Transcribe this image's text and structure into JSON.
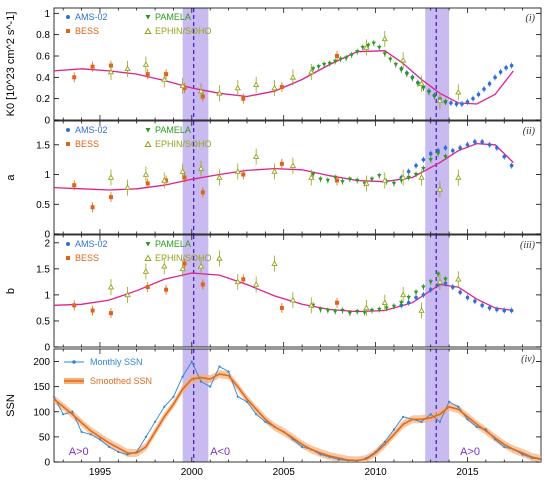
{
  "chart_data": [
    {
      "type": "scatter",
      "panel_label": "(i)",
      "ylabel": "K0 [10^23 cm^2 s^-1]",
      "xlim": [
        1992.5,
        2019
      ],
      "ylim": [
        0,
        1.05
      ],
      "yticks": [
        0,
        0.2,
        0.4,
        0.6,
        0.8,
        1
      ],
      "legend": [
        "AMS-02",
        "PAMELA",
        "BESS",
        "EPHIN/SOHO"
      ],
      "series": [
        {
          "name": "AMS-02",
          "color": "#2f6fd6",
          "marker": "circle",
          "x": [
            2011.4,
            2011.7,
            2012.0,
            2012.3,
            2012.6,
            2012.9,
            2013.2,
            2013.5,
            2013.8,
            2014.1,
            2014.4,
            2014.7,
            2015.0,
            2015.3,
            2015.6,
            2015.9,
            2016.2,
            2016.5,
            2016.8,
            2017.1,
            2017.4
          ],
          "y": [
            0.48,
            0.44,
            0.4,
            0.35,
            0.31,
            0.27,
            0.23,
            0.2,
            0.17,
            0.16,
            0.15,
            0.15,
            0.17,
            0.2,
            0.24,
            0.29,
            0.34,
            0.4,
            0.45,
            0.49,
            0.51
          ]
        },
        {
          "name": "PAMELA",
          "color": "#2a9a1e",
          "marker": "tri-down",
          "x": [
            2006.6,
            2006.9,
            2007.2,
            2007.5,
            2007.8,
            2008.1,
            2008.4,
            2008.7,
            2009.0,
            2009.3,
            2009.6,
            2009.9,
            2010.2,
            2010.5,
            2010.8,
            2011.1,
            2011.4,
            2011.7,
            2012.0,
            2012.3,
            2012.6,
            2012.9,
            2013.2,
            2013.5,
            2013.8
          ],
          "y": [
            0.48,
            0.5,
            0.52,
            0.53,
            0.55,
            0.57,
            0.58,
            0.61,
            0.64,
            0.68,
            0.7,
            0.72,
            0.68,
            0.62,
            0.57,
            0.52,
            0.47,
            0.43,
            0.39,
            0.34,
            0.3,
            0.26,
            0.22,
            0.19,
            0.17
          ]
        },
        {
          "name": "BESS",
          "color": "#e0631a",
          "marker": "square",
          "x": [
            1993.6,
            1994.6,
            1995.6,
            1997.6,
            1998.6,
            1999.6,
            2000.6,
            2002.8,
            2004.9,
            2007.9
          ],
          "y": [
            0.4,
            0.5,
            0.51,
            0.43,
            0.43,
            0.3,
            0.22,
            0.2,
            0.31,
            0.6
          ]
        },
        {
          "name": "EPHIN/SOHO",
          "color": "#97a21c",
          "marker": "tri-up",
          "x": [
            1995.6,
            1996.5,
            1997.5,
            1998.5,
            1999.5,
            2000.5,
            2001.5,
            2002.5,
            2003.5,
            2004.5,
            2005.5,
            2006.5,
            2009.5,
            2010.5,
            2011.5,
            2012.5,
            2013.5,
            2014.5
          ],
          "y": [
            0.45,
            0.48,
            0.52,
            0.38,
            0.32,
            0.27,
            0.25,
            0.3,
            0.33,
            0.3,
            0.4,
            0.45,
            0.68,
            0.76,
            0.56,
            0.34,
            0.18,
            0.26
          ]
        }
      ],
      "fit": {
        "color": "#e0208f",
        "x": [
          1992.5,
          1994,
          1995.5,
          1997,
          1998.5,
          2000,
          2001.5,
          2003,
          2004.5,
          2006,
          2007.5,
          2009,
          2010.5,
          2011.5,
          2012.5,
          2013.5,
          2014.5,
          2015.5,
          2016.5,
          2017.5
        ],
        "y": [
          0.46,
          0.48,
          0.46,
          0.43,
          0.37,
          0.3,
          0.25,
          0.22,
          0.27,
          0.38,
          0.52,
          0.64,
          0.65,
          0.53,
          0.38,
          0.25,
          0.16,
          0.15,
          0.24,
          0.46
        ]
      }
    },
    {
      "type": "scatter",
      "panel_label": "(ii)",
      "ylabel": "a",
      "xlim": [
        1992.5,
        2019
      ],
      "ylim": [
        0,
        1.9
      ],
      "yticks": [
        0,
        0.5,
        1,
        1.5
      ],
      "legend": [
        "AMS-02",
        "PAMELA",
        "BESS",
        "EPHIN/SOHO"
      ],
      "series": [
        {
          "name": "AMS-02",
          "color": "#2f6fd6",
          "marker": "circle",
          "x": [
            2011.4,
            2011.8,
            2012.2,
            2012.6,
            2013.0,
            2013.4,
            2013.8,
            2014.2,
            2014.6,
            2015.0,
            2015.4,
            2015.8,
            2016.2,
            2016.6,
            2017.0,
            2017.4
          ],
          "y": [
            0.95,
            1.05,
            1.15,
            1.25,
            1.35,
            1.4,
            1.45,
            1.4,
            1.45,
            1.5,
            1.55,
            1.55,
            1.5,
            1.45,
            1.3,
            1.15
          ]
        },
        {
          "name": "PAMELA",
          "color": "#2a9a1e",
          "marker": "tri-down",
          "x": [
            2006.6,
            2007.0,
            2007.4,
            2007.8,
            2008.2,
            2008.6,
            2009.0,
            2009.4,
            2009.8,
            2010.2,
            2010.6,
            2011.0,
            2011.4,
            2011.8,
            2012.2,
            2012.6,
            2013.0,
            2013.4,
            2013.8
          ],
          "y": [
            1.0,
            0.92,
            0.9,
            0.95,
            0.88,
            0.92,
            0.9,
            0.85,
            0.92,
            0.98,
            0.88,
            0.85,
            0.9,
            0.95,
            1.0,
            1.1,
            1.25,
            1.35,
            1.3
          ]
        },
        {
          "name": "BESS",
          "color": "#e0631a",
          "marker": "square",
          "x": [
            1993.6,
            1994.6,
            1995.6,
            1997.6,
            1998.6,
            1999.6,
            2000.6,
            2002.8,
            2004.9,
            2007.9
          ],
          "y": [
            0.82,
            0.45,
            0.62,
            0.85,
            0.9,
            0.95,
            0.7,
            1.0,
            1.18,
            0.9
          ]
        },
        {
          "name": "EPHIN/SOHO",
          "color": "#97a21c",
          "marker": "tri-up",
          "x": [
            1995.6,
            1996.5,
            1997.5,
            1998.5,
            1999.5,
            2000.5,
            2001.5,
            2002.5,
            2003.5,
            2004.5,
            2005.5,
            2006.5,
            2009.5,
            2010.5,
            2011.5,
            2012.5,
            2013.5,
            2014.5
          ],
          "y": [
            0.95,
            0.78,
            1.0,
            0.9,
            1.05,
            1.1,
            0.95,
            1.05,
            1.3,
            1.05,
            1.15,
            0.95,
            0.85,
            0.9,
            0.95,
            0.95,
            0.75,
            0.95
          ]
        }
      ],
      "fit": {
        "color": "#e0208f",
        "x": [
          1992.5,
          1994,
          1995.5,
          1997,
          1998.5,
          2000,
          2001.5,
          2003,
          2004.5,
          2006,
          2007.5,
          2009,
          2010.5,
          2012,
          2013.5,
          2014.5,
          2015.5,
          2016.5,
          2017.5
        ],
        "y": [
          0.78,
          0.76,
          0.74,
          0.76,
          0.82,
          0.92,
          1.0,
          1.07,
          1.1,
          1.08,
          0.98,
          0.9,
          0.88,
          0.95,
          1.2,
          1.4,
          1.52,
          1.5,
          1.2
        ]
      }
    },
    {
      "type": "scatter",
      "panel_label": "(iii)",
      "ylabel": "b",
      "xlim": [
        1992.5,
        2019
      ],
      "ylim": [
        0,
        2.15
      ],
      "yticks": [
        0,
        0.5,
        1,
        1.5,
        2
      ],
      "legend": [
        "AMS-02",
        "PAMELA",
        "BESS",
        "EPHIN/SOHO"
      ],
      "series": [
        {
          "name": "AMS-02",
          "color": "#2f6fd6",
          "marker": "circle",
          "x": [
            2011.4,
            2011.8,
            2012.2,
            2012.6,
            2013.0,
            2013.4,
            2013.8,
            2014.2,
            2014.6,
            2015.0,
            2015.4,
            2015.8,
            2016.2,
            2016.6,
            2017.0,
            2017.4
          ],
          "y": [
            0.8,
            0.85,
            0.95,
            1.0,
            1.1,
            1.2,
            1.22,
            1.15,
            1.05,
            0.95,
            0.88,
            0.8,
            0.75,
            0.72,
            0.7,
            0.7
          ]
        },
        {
          "name": "PAMELA",
          "color": "#2a9a1e",
          "marker": "tri-down",
          "x": [
            2006.6,
            2007.0,
            2007.4,
            2007.8,
            2008.2,
            2008.6,
            2009.0,
            2009.4,
            2009.8,
            2010.2,
            2010.6,
            2011.0,
            2011.4,
            2011.8,
            2012.2,
            2012.6,
            2013.0,
            2013.4,
            2013.8
          ],
          "y": [
            0.8,
            0.72,
            0.7,
            0.68,
            0.7,
            0.65,
            0.68,
            0.66,
            0.7,
            0.72,
            0.75,
            0.78,
            0.85,
            0.95,
            1.05,
            1.15,
            1.25,
            1.4,
            1.3
          ]
        },
        {
          "name": "BESS",
          "color": "#e0631a",
          "marker": "square",
          "x": [
            1993.6,
            1994.6,
            1995.6,
            1997.6,
            1998.6,
            1999.6,
            2000.6,
            2002.8,
            2004.9,
            2007.9
          ],
          "y": [
            0.8,
            0.7,
            0.65,
            1.15,
            1.1,
            1.6,
            1.2,
            1.3,
            0.75,
            0.85
          ]
        },
        {
          "name": "EPHIN/SOHO",
          "color": "#97a21c",
          "marker": "tri-up",
          "x": [
            1995.6,
            1996.5,
            1997.5,
            1998.5,
            1999.5,
            2000.5,
            2001.5,
            2002.5,
            2003.5,
            2004.5,
            2005.5,
            2006.5,
            2009.5,
            2010.5,
            2011.5,
            2012.5,
            2013.5,
            2014.5
          ],
          "y": [
            1.15,
            1.0,
            1.45,
            1.55,
            1.5,
            1.55,
            1.7,
            1.25,
            1.2,
            1.6,
            0.9,
            0.8,
            0.75,
            0.85,
            1.0,
            0.7,
            1.25,
            1.3
          ]
        }
      ],
      "fit": {
        "color": "#e0208f",
        "x": [
          1992.5,
          1994,
          1995.5,
          1997,
          1998.5,
          2000,
          2001.5,
          2003,
          2004.5,
          2006,
          2007.5,
          2009,
          2010.5,
          2012,
          2013.5,
          2014.5,
          2015.5,
          2016.5,
          2017.5
        ],
        "y": [
          0.8,
          0.82,
          0.9,
          1.08,
          1.3,
          1.42,
          1.38,
          1.2,
          0.98,
          0.82,
          0.72,
          0.68,
          0.7,
          0.85,
          1.2,
          1.15,
          0.92,
          0.75,
          0.7
        ]
      }
    },
    {
      "type": "line",
      "panel_label": "(iv)",
      "ylabel": "SSN",
      "xlim": [
        1992.5,
        2019
      ],
      "ylim": [
        0,
        225
      ],
      "yticks": [
        0,
        50,
        100,
        150,
        200
      ],
      "xticks": [
        1995,
        2000,
        2005,
        2010,
        2015
      ],
      "legend": [
        "Monthly SSN",
        "Smoothed SSN"
      ],
      "series": [
        {
          "name": "Monthly SSN",
          "color": "#2f86d6",
          "x": [
            1992.5,
            1993.0,
            1993.5,
            1994.0,
            1994.5,
            1995.0,
            1995.5,
            1996.0,
            1996.5,
            1997.0,
            1997.5,
            1998.0,
            1998.5,
            1999.0,
            1999.5,
            2000.0,
            2000.5,
            2001.0,
            2001.5,
            2002.0,
            2002.5,
            2003.0,
            2003.5,
            2004.0,
            2004.5,
            2005.0,
            2005.5,
            2006.0,
            2006.5,
            2007.0,
            2007.5,
            2008.0,
            2008.5,
            2009.0,
            2009.5,
            2010.0,
            2010.5,
            2011.0,
            2011.5,
            2012.0,
            2012.5,
            2013.0,
            2013.5,
            2014.0,
            2014.5,
            2015.0,
            2015.5,
            2016.0,
            2016.5,
            2017.0,
            2017.5,
            2018.0,
            2018.5,
            2019.0
          ],
          "y": [
            130,
            95,
            100,
            60,
            55,
            45,
            30,
            20,
            15,
            20,
            50,
            80,
            110,
            130,
            170,
            200,
            160,
            150,
            190,
            180,
            130,
            120,
            95,
            80,
            70,
            60,
            45,
            30,
            25,
            15,
            10,
            5,
            3,
            2,
            8,
            20,
            40,
            65,
            90,
            85,
            80,
            95,
            80,
            120,
            110,
            85,
            70,
            65,
            45,
            30,
            25,
            15,
            8,
            5
          ]
        },
        {
          "name": "Smoothed SSN",
          "color": "#e06a1a",
          "x": [
            1992.5,
            1993.0,
            1993.5,
            1994.0,
            1994.5,
            1995.0,
            1995.5,
            1996.0,
            1996.5,
            1997.0,
            1997.5,
            1998.0,
            1998.5,
            1999.0,
            1999.5,
            2000.0,
            2000.5,
            2001.0,
            2001.5,
            2002.0,
            2002.5,
            2003.0,
            2003.5,
            2004.0,
            2004.5,
            2005.0,
            2005.5,
            2006.0,
            2006.5,
            2007.0,
            2007.5,
            2008.0,
            2008.5,
            2009.0,
            2009.5,
            2010.0,
            2010.5,
            2011.0,
            2011.5,
            2012.0,
            2012.5,
            2013.0,
            2013.5,
            2014.0,
            2014.5,
            2015.0,
            2015.5,
            2016.0,
            2016.5,
            2017.0,
            2017.5,
            2018.0,
            2018.5,
            2019.0
          ],
          "y": [
            125,
            110,
            95,
            78,
            62,
            50,
            38,
            28,
            18,
            18,
            30,
            60,
            90,
            115,
            145,
            165,
            168,
            165,
            175,
            172,
            150,
            125,
            105,
            85,
            70,
            60,
            48,
            35,
            25,
            18,
            12,
            8,
            4,
            3,
            6,
            18,
            35,
            55,
            75,
            85,
            85,
            88,
            95,
            110,
            105,
            90,
            75,
            62,
            48,
            35,
            25,
            18,
            10,
            6
          ]
        }
      ],
      "annotations": [
        "A>0",
        "A<0",
        "A>0"
      ]
    }
  ],
  "shading": {
    "color": "#b7a3ea",
    "bands": [
      [
        1999.5,
        2000.9
      ],
      [
        2012.7,
        2014.0
      ]
    ],
    "dashed_lines": [
      2000.1,
      2013.3
    ],
    "dashed_color": "#4a1fd6"
  }
}
